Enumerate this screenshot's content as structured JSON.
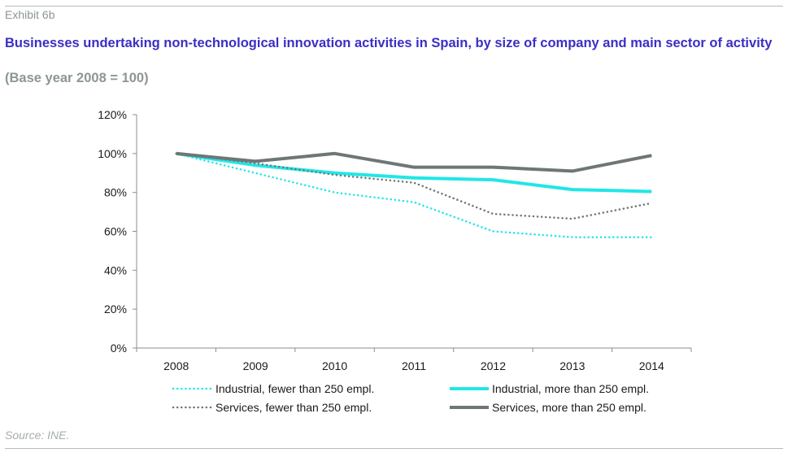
{
  "header": {
    "exhibit": "Exhibit 6b",
    "title": "Businesses undertaking non-technological innovation activities in Spain, by size of company and main sector of activity",
    "subtitle": "(Base year 2008 = 100)"
  },
  "footer": {
    "source": "Source: INE."
  },
  "chart_data": {
    "type": "line",
    "title": "Businesses undertaking non-technological innovation activities in Spain, by size of company and main sector of activity",
    "subtitle": "(Base year 2008 = 100)",
    "x": [
      "2008",
      "2009",
      "2010",
      "2011",
      "2012",
      "2013",
      "2014"
    ],
    "ylim": [
      0,
      120
    ],
    "yticks": [
      "0%",
      "20%",
      "40%",
      "60%",
      "80%",
      "100%",
      "120%"
    ],
    "grid": false,
    "legend_position": "bottom",
    "series": [
      {
        "name": "Industrial, fewer than 250 empl.",
        "color": "#22e6e6",
        "style": "dotted",
        "values": [
          100,
          90,
          80,
          75,
          60,
          57,
          57
        ]
      },
      {
        "name": "Industrial, more than 250 empl.",
        "color": "#22e6e6",
        "style": "solid",
        "values": [
          100,
          94,
          90,
          87.5,
          86.5,
          81.5,
          80.5
        ]
      },
      {
        "name": "Services, fewer than 250 empl.",
        "color": "#6e7676",
        "style": "dotted",
        "values": [
          100,
          95,
          89,
          85,
          69,
          66.5,
          74.5
        ]
      },
      {
        "name": "Services, more than 250 empl.",
        "color": "#6e7676",
        "style": "solid",
        "values": [
          100,
          96,
          100,
          93,
          93,
          91,
          99
        ]
      }
    ]
  }
}
